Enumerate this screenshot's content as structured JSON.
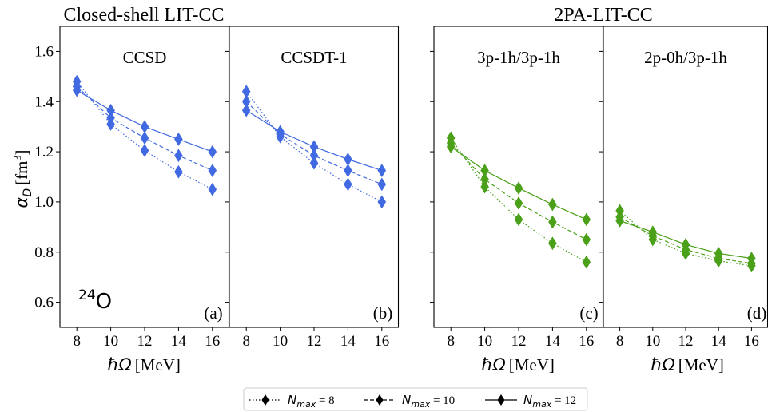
{
  "figure": {
    "group_titles": [
      "Closed-shell LIT-CC",
      "2PA-LIT-CC"
    ],
    "nucleus": {
      "mass": "24",
      "symbol": "O"
    },
    "xlabel": {
      "symbol": "ħΩ",
      "unit": "[MeV]"
    },
    "ylabel": {
      "symbol": "α",
      "sub": "D",
      "unit_pre": "[fm",
      "unit_sup": "3",
      "unit_post": "]"
    },
    "legend": [
      {
        "math": "N",
        "sub": "max",
        "eq": " = 8",
        "style": "dotted"
      },
      {
        "math": "N",
        "sub": "max",
        "eq": " = 10",
        "style": "dashed"
      },
      {
        "math": "N",
        "sub": "max",
        "eq": " = 12",
        "style": "solid"
      }
    ]
  },
  "chart_data": [
    {
      "type": "line",
      "panel_label": "(a)",
      "method": "CCSD",
      "color": "#4169e1",
      "x": [
        8,
        10,
        12,
        14,
        16
      ],
      "xticks": [
        "8",
        "10",
        "12",
        "14",
        "16"
      ],
      "xlim": [
        7.0,
        17.0
      ],
      "ylim": [
        0.5,
        1.7
      ],
      "yticks": [
        "0.6",
        "0.8",
        "1.0",
        "1.2",
        "1.4",
        "1.6"
      ],
      "series": [
        {
          "name": "Nmax = 8",
          "style": "dotted",
          "values": [
            1.48,
            1.31,
            1.205,
            1.12,
            1.05
          ]
        },
        {
          "name": "Nmax = 10",
          "style": "dashed",
          "values": [
            1.46,
            1.335,
            1.255,
            1.185,
            1.125
          ]
        },
        {
          "name": "Nmax = 12",
          "style": "solid",
          "values": [
            1.445,
            1.365,
            1.3,
            1.25,
            1.2
          ]
        }
      ]
    },
    {
      "type": "line",
      "panel_label": "(b)",
      "method": "CCSDT-1",
      "color": "#4169e1",
      "x": [
        8,
        10,
        12,
        14,
        16
      ],
      "xticks": [
        "8",
        "10",
        "12",
        "14",
        "16"
      ],
      "xlim": [
        7.0,
        17.0
      ],
      "ylim": [
        0.5,
        1.7
      ],
      "series": [
        {
          "name": "Nmax = 8",
          "style": "dotted",
          "values": [
            1.44,
            1.26,
            1.155,
            1.07,
            1.0
          ]
        },
        {
          "name": "Nmax = 10",
          "style": "dashed",
          "values": [
            1.4,
            1.27,
            1.185,
            1.125,
            1.07
          ]
        },
        {
          "name": "Nmax = 12",
          "style": "solid",
          "values": [
            1.365,
            1.28,
            1.22,
            1.17,
            1.125
          ]
        }
      ]
    },
    {
      "type": "line",
      "panel_label": "(c)",
      "method": "3p-1h/3p-1h",
      "color": "#4aa018",
      "x": [
        8,
        10,
        12,
        14,
        16
      ],
      "xticks": [
        "8",
        "10",
        "12",
        "14",
        "16"
      ],
      "xlim": [
        7.0,
        17.0
      ],
      "ylim": [
        0.5,
        1.7
      ],
      "series": [
        {
          "name": "Nmax = 8",
          "style": "dotted",
          "values": [
            1.255,
            1.06,
            0.93,
            0.835,
            0.76
          ]
        },
        {
          "name": "Nmax = 10",
          "style": "dashed",
          "values": [
            1.235,
            1.09,
            0.995,
            0.92,
            0.85
          ]
        },
        {
          "name": "Nmax = 12",
          "style": "solid",
          "values": [
            1.22,
            1.125,
            1.055,
            0.99,
            0.93
          ]
        }
      ]
    },
    {
      "type": "line",
      "panel_label": "(d)",
      "method": "2p-0h/3p-1h",
      "color": "#4aa018",
      "x": [
        8,
        10,
        12,
        14,
        16
      ],
      "xticks": [
        "8",
        "10",
        "12",
        "14",
        "16"
      ],
      "xlim": [
        7.0,
        17.0
      ],
      "ylim": [
        0.5,
        1.7
      ],
      "series": [
        {
          "name": "Nmax = 8",
          "style": "dotted",
          "values": [
            0.965,
            0.85,
            0.795,
            0.765,
            0.745
          ]
        },
        {
          "name": "Nmax = 10",
          "style": "dashed",
          "values": [
            0.94,
            0.865,
            0.81,
            0.775,
            0.755
          ]
        },
        {
          "name": "Nmax = 12",
          "style": "solid",
          "values": [
            0.925,
            0.88,
            0.83,
            0.795,
            0.775
          ]
        }
      ]
    }
  ]
}
